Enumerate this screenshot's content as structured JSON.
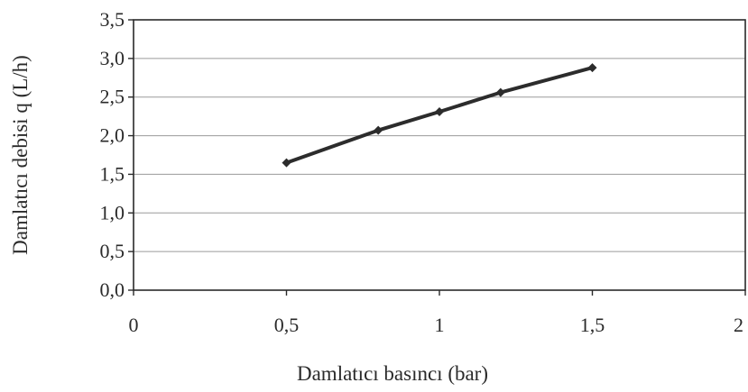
{
  "chart_data": {
    "type": "line",
    "title": "",
    "xlabel": "Damlatıcı basıncı (bar)",
    "ylabel": "Damlatıcı debisi q (L/h)",
    "xlim": [
      0,
      2
    ],
    "ylim": [
      0,
      3.5
    ],
    "x_ticks": [
      "0",
      "0,5",
      "1",
      "1,5",
      "2"
    ],
    "y_ticks": [
      "0,0",
      "0,5",
      "1,0",
      "1,5",
      "2,0",
      "2,5",
      "3,0",
      "3,5"
    ],
    "grid": true,
    "series": [
      {
        "x": [
          0.5,
          0.8,
          1.0,
          1.2,
          1.5
        ],
        "values": [
          1.65,
          2.07,
          2.31,
          2.56,
          2.88
        ]
      }
    ]
  }
}
